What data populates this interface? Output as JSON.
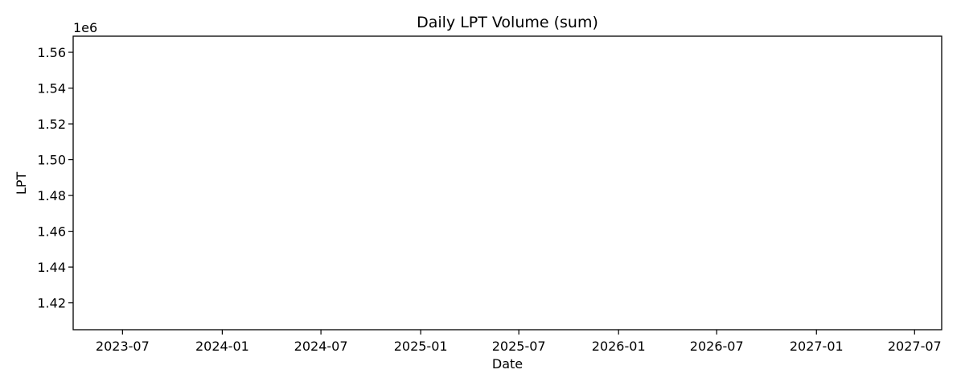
{
  "chart_data": {
    "type": "line",
    "title": "Daily LPT Volume (sum)",
    "xlabel": "Date",
    "ylabel": "LPT",
    "y_offset_label": "1e6",
    "xlim": [
      "2023-04-01",
      "2027-08-20"
    ],
    "ylim": [
      1405000,
      1569000
    ],
    "x_ticks": [
      "2023-07",
      "2024-01",
      "2024-07",
      "2025-01",
      "2025-07",
      "2026-01",
      "2026-07",
      "2027-01",
      "2027-07"
    ],
    "y_ticks": [
      1420000,
      1440000,
      1460000,
      1480000,
      1500000,
      1520000,
      1540000,
      1560000
    ],
    "y_tick_labels": [
      "1.42",
      "1.44",
      "1.46",
      "1.48",
      "1.50",
      "1.52",
      "1.54",
      "1.56"
    ],
    "grid": false,
    "series": []
  }
}
